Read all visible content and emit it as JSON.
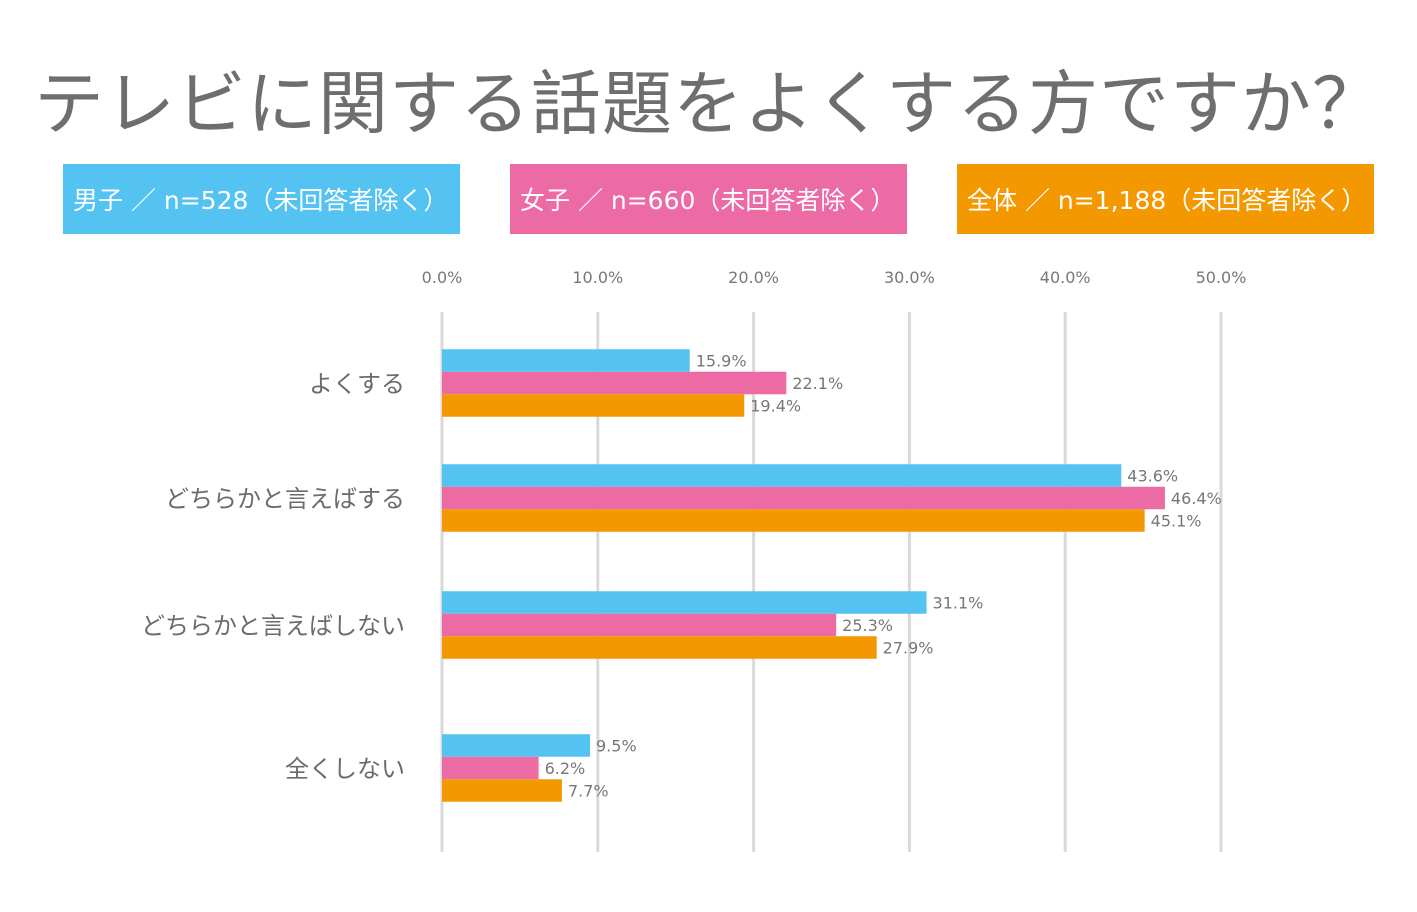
{
  "title": "テレビに関する話題をよくする方ですか？",
  "legend": [
    {
      "label": "男子 ／ n=528（未回答者除く）",
      "color": "#54C3F1"
    },
    {
      "label": "女子 ／ n=660（未回答者除く）",
      "color": "#EC6BA5"
    },
    {
      "label": "全体 ／ n=1,188（未回答者除く）",
      "color": "#F39800"
    }
  ],
  "chart_data": {
    "type": "bar",
    "orientation": "horizontal",
    "title": "テレビに関する話題をよくする方ですか？",
    "categories": [
      "よくする",
      "どちらかと言えばする",
      "どちらかと言えばしない",
      "全くしない"
    ],
    "series": [
      {
        "name": "男子 ／ n=528（未回答者除く）",
        "color": "#54C3F1",
        "values": [
          15.9,
          43.6,
          31.1,
          9.5
        ]
      },
      {
        "name": "女子 ／ n=660（未回答者除く）",
        "color": "#EC6BA5",
        "values": [
          22.1,
          46.4,
          25.3,
          6.2
        ]
      },
      {
        "name": "全体 ／ n=1,188（未回答者除く）",
        "color": "#F39800",
        "values": [
          19.4,
          45.1,
          27.9,
          7.7
        ]
      }
    ],
    "xlim": [
      0,
      50
    ],
    "xticks": [
      "0.0%",
      "10.0%",
      "20.0%",
      "30.0%",
      "40.0%",
      "50.0%"
    ],
    "value_labels": [
      [
        "15.9%",
        "43.6%",
        "31.1%",
        "9.5%"
      ],
      [
        "22.1%",
        "46.4%",
        "25.3%",
        "6.2%"
      ],
      [
        "19.4%",
        "45.1%",
        "27.9%",
        "7.7%"
      ]
    ],
    "grid": true,
    "legend_position": "top"
  }
}
